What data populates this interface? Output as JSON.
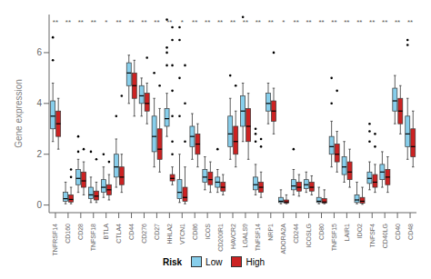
{
  "chart_data": {
    "type": "box",
    "y_label": "Gene expression",
    "legend_title": "Risk",
    "legend": "bottom",
    "grid": false,
    "ylim": [
      -0.3,
      7.5
    ],
    "yticks": [
      0,
      2,
      4,
      6
    ],
    "categories": [
      "TNFRSF14",
      "CD160",
      "CD28",
      "TNFSF18",
      "BTLA",
      "CTLA4",
      "CD44",
      "CD276",
      "CD27",
      "HHLA2",
      "VTCN1",
      "CD86",
      "ICOS",
      "CD200R1",
      "HAVCR2",
      "LGALS9",
      "TNFSF14",
      "NRP1",
      "ADORA2A",
      "CD244",
      "ICOSLG",
      "CD80",
      "TNFSF15",
      "LAIR1",
      "IDO2",
      "TNFSF4",
      "CD40LG",
      "CD40",
      "CD48"
    ],
    "significance": [
      "**",
      "**",
      "**",
      "**",
      "*",
      "**",
      "**",
      "**",
      "**",
      "**",
      "*",
      "**",
      "**",
      "**",
      "**",
      "**",
      "**",
      "**",
      "*",
      "**",
      "**",
      "**",
      "**",
      "**",
      "**",
      "**",
      "**",
      "**",
      "**"
    ],
    "significance_y": 7.2,
    "series": [
      {
        "name": "Low",
        "color": "#87CEEB",
        "values": [
          [
            2.5,
            3.0,
            3.5,
            4.1,
            4.8
          ],
          [
            0.05,
            0.15,
            0.25,
            0.5,
            0.9
          ],
          [
            0.5,
            0.8,
            1.05,
            1.4,
            1.8
          ],
          [
            0.1,
            0.25,
            0.4,
            0.7,
            1.1
          ],
          [
            0.3,
            0.5,
            0.7,
            1.0,
            1.5
          ],
          [
            0.7,
            1.1,
            1.5,
            2.0,
            2.6
          ],
          [
            4.0,
            4.7,
            5.2,
            5.6,
            5.9
          ],
          [
            3.5,
            4.0,
            4.3,
            4.7,
            5.0
          ],
          [
            1.5,
            2.1,
            2.7,
            3.5,
            4.2
          ],
          [
            2.7,
            3.1,
            3.4,
            3.8,
            4.4
          ],
          [
            0.1,
            0.25,
            0.5,
            1.0,
            2.0
          ],
          [
            1.8,
            2.3,
            2.7,
            3.1,
            3.6
          ],
          [
            0.6,
            0.9,
            1.1,
            1.4,
            1.9
          ],
          [
            0.5,
            0.7,
            0.9,
            1.1,
            1.4
          ],
          [
            1.8,
            2.3,
            2.8,
            3.5,
            4.2
          ],
          [
            2.5,
            3.1,
            3.7,
            4.3,
            4.8
          ],
          [
            0.4,
            0.6,
            0.8,
            1.1,
            1.6
          ],
          [
            3.2,
            3.7,
            4.0,
            4.4,
            4.8
          ],
          [
            0.05,
            0.1,
            0.15,
            0.3,
            0.6
          ],
          [
            0.4,
            0.6,
            0.75,
            1.0,
            1.4
          ],
          [
            0.5,
            0.65,
            0.8,
            1.0,
            1.3
          ],
          [
            0.05,
            0.1,
            0.15,
            0.3,
            0.7
          ],
          [
            1.5,
            2.0,
            2.3,
            2.7,
            3.3
          ],
          [
            0.9,
            1.2,
            1.5,
            1.9,
            2.5
          ],
          [
            0.05,
            0.1,
            0.2,
            0.4,
            0.9
          ],
          [
            0.6,
            0.85,
            1.05,
            1.3,
            1.7
          ],
          [
            0.7,
            1.0,
            1.3,
            1.6,
            2.1
          ],
          [
            3.2,
            3.7,
            4.1,
            4.6,
            5.1
          ],
          [
            1.8,
            2.3,
            2.8,
            3.5,
            4.2
          ]
        ],
        "outliers": [
          [
            5.7,
            6.6
          ],
          [],
          [
            2.1,
            2.7
          ],
          [
            2.1
          ],
          [
            2.0
          ],
          [
            3.5
          ],
          [],
          [],
          [
            5.2
          ],
          [
            5.5,
            6.0,
            6.2,
            7.3
          ],
          [
            3.5,
            5.0,
            6.5,
            7.0
          ],
          [],
          [],
          [
            2.2
          ],
          [
            5.1
          ],
          [
            7.4
          ],
          [
            2.5,
            2.8,
            3.0
          ],
          [],
          [],
          [
            2.2
          ],
          [],
          [],
          [
            4.0,
            5.0
          ],
          [],
          [],
          [
            2.5,
            2.9,
            3.2
          ],
          [],
          [],
          [
            6.3,
            6.5
          ]
        ]
      },
      {
        "name": "High",
        "color": "#CC2222",
        "values": [
          [
            2.2,
            2.7,
            3.2,
            3.7,
            4.2
          ],
          [
            0.05,
            0.12,
            0.22,
            0.4,
            0.7
          ],
          [
            0.4,
            0.7,
            0.95,
            1.3,
            1.7
          ],
          [
            0.1,
            0.2,
            0.35,
            0.55,
            0.9
          ],
          [
            0.2,
            0.4,
            0.6,
            0.8,
            1.2
          ],
          [
            0.5,
            0.8,
            1.1,
            1.5,
            2.0
          ],
          [
            3.5,
            4.2,
            4.7,
            5.2,
            5.7
          ],
          [
            3.2,
            3.7,
            4.0,
            4.4,
            4.8
          ],
          [
            1.3,
            1.8,
            2.2,
            3.0,
            3.8
          ],
          [
            0.8,
            0.95,
            1.05,
            1.2,
            1.5
          ],
          [
            0.05,
            0.15,
            0.3,
            0.7,
            1.5
          ],
          [
            1.5,
            2.0,
            2.4,
            2.8,
            3.2
          ],
          [
            0.5,
            0.8,
            1.0,
            1.3,
            1.7
          ],
          [
            0.4,
            0.55,
            0.7,
            0.9,
            1.2
          ],
          [
            1.5,
            2.0,
            2.5,
            3.1,
            3.7
          ],
          [
            1.8,
            2.5,
            3.1,
            3.8,
            4.4
          ],
          [
            0.3,
            0.5,
            0.7,
            0.9,
            1.3
          ],
          [
            2.8,
            3.3,
            3.7,
            4.1,
            4.6
          ],
          [
            0.05,
            0.08,
            0.12,
            0.2,
            0.4
          ],
          [
            0.35,
            0.55,
            0.7,
            0.9,
            1.2
          ],
          [
            0.4,
            0.55,
            0.7,
            0.9,
            1.15
          ],
          [
            0.05,
            0.08,
            0.12,
            0.25,
            0.6
          ],
          [
            1.3,
            1.7,
            2.0,
            2.4,
            2.9
          ],
          [
            0.7,
            1.0,
            1.3,
            1.7,
            2.2
          ],
          [
            0.03,
            0.07,
            0.15,
            0.3,
            0.7
          ],
          [
            0.5,
            0.7,
            0.9,
            1.2,
            1.6
          ],
          [
            0.5,
            0.8,
            1.1,
            1.4,
            1.9
          ],
          [
            2.8,
            3.2,
            3.7,
            4.2,
            4.7
          ],
          [
            1.5,
            1.9,
            2.3,
            3.0,
            3.7
          ]
        ],
        "outliers": [
          [],
          [
            1.1,
            1.4
          ],
          [
            2.2
          ],
          [
            1.8
          ],
          [
            1.7
          ],
          [
            4.3
          ],
          [],
          [
            5.8
          ],
          [
            4.7
          ],
          [
            2.0,
            2.5,
            3.5,
            4.5,
            5.5,
            6.5,
            7.0
          ],
          [
            2.5,
            4.0,
            5.5
          ],
          [],
          [],
          [],
          [
            4.7
          ],
          [],
          [
            2.3,
            2.6
          ],
          [
            6.0
          ],
          [],
          [],
          [],
          [],
          [
            4.5
          ],
          [],
          [],
          [
            2.3,
            2.8
          ],
          [],
          [],
          []
        ]
      }
    ]
  }
}
